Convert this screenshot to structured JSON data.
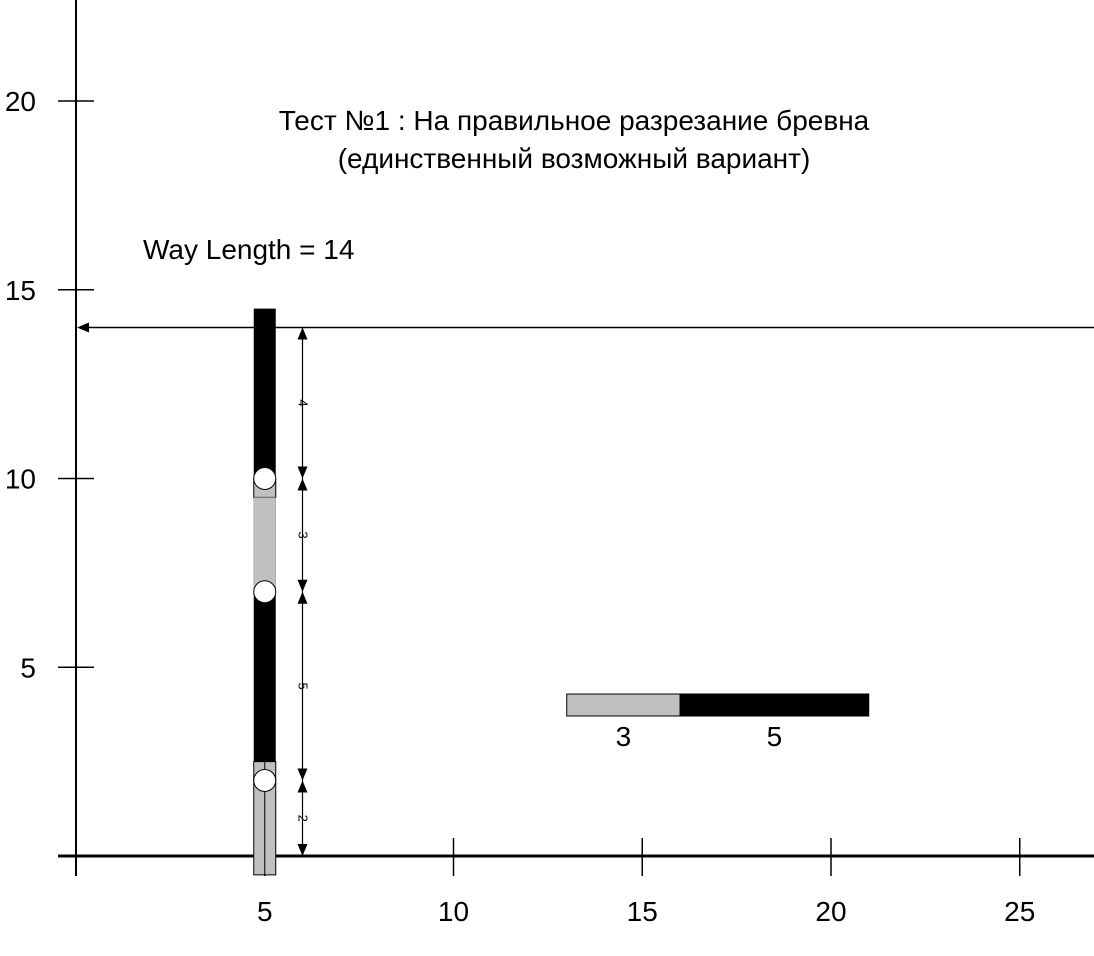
{
  "title": {
    "line1": "Тест №1 : На правильное разрезание бревна",
    "line2": "(единственный возможный вариант)"
  },
  "way_length_label": "Way Length = 14",
  "colors": {
    "dark": "#000000",
    "light": "#c0c0c0",
    "marker": "#ffffff"
  },
  "chart_data": {
    "type": "diagram",
    "x_ticks": [
      "5",
      "10",
      "15",
      "20",
      "25"
    ],
    "y_ticks": [
      "5",
      "10",
      "15",
      "20"
    ],
    "xlim": [
      0,
      27
    ],
    "ylim": [
      0,
      23
    ],
    "way_length": 14,
    "log": {
      "x": 5,
      "segments": [
        {
          "from": -0.5,
          "to": 2.5,
          "color": "light"
        },
        {
          "from": 2.5,
          "to": 9.5,
          "color": "dark"
        },
        {
          "from": 9.5,
          "to": 10,
          "color": "light"
        },
        {
          "from": 10,
          "to": 14.5,
          "color": "dark"
        }
      ],
      "light_inner": {
        "from": 7,
        "to": 9.5
      }
    },
    "cut_points": [
      2,
      7,
      10
    ],
    "dimensions": {
      "x": 6,
      "items": [
        {
          "from": 0,
          "to": 2,
          "label": "2"
        },
        {
          "from": 2,
          "to": 7,
          "label": "5"
        },
        {
          "from": 7,
          "to": 10,
          "label": "3"
        },
        {
          "from": 10,
          "to": 14,
          "label": "4"
        }
      ]
    },
    "legend": {
      "y": 4,
      "pieces": [
        {
          "from": 13,
          "to": 16,
          "color": "light",
          "label": "3"
        },
        {
          "from": 16,
          "to": 21,
          "color": "dark",
          "label": "5"
        }
      ]
    }
  }
}
